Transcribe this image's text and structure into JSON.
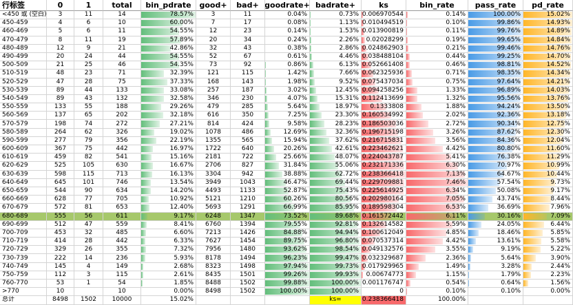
{
  "table": {
    "header": [
      "行标签",
      "0",
      "1",
      "total",
      "bin_pdrate",
      "good+",
      "bad+",
      "goodrate+",
      "badrate+",
      "ks",
      "bin_rate",
      "pass_rate",
      "pd_rate"
    ],
    "rows": [
      [
        "<450 或 (空白)",
        "3",
        "11",
        "14",
        "78.57%",
        "3",
        "11",
        "0.04%",
        "0.73%",
        "0.006970544",
        "0.14%",
        "100.00%",
        "15.02%"
      ],
      [
        "450-459",
        "4",
        "6",
        "10",
        "60.00%",
        "7",
        "17",
        "0.08%",
        "1.13%",
        "0.010494519",
        "0.10%",
        "99.86%",
        "14.93%"
      ],
      [
        "460-469",
        "5",
        "6",
        "11",
        "54.55%",
        "12",
        "23",
        "0.14%",
        "1.53%",
        "0.013900819",
        "0.11%",
        "99.76%",
        "14.89%"
      ],
      [
        "470-479",
        "8",
        "11",
        "19",
        "57.89%",
        "20",
        "34",
        "0.24%",
        "2.26%",
        "0.02028299",
        "0.19%",
        "99.65%",
        "14.84%"
      ],
      [
        "480-489",
        "12",
        "9",
        "21",
        "42.86%",
        "32",
        "43",
        "0.38%",
        "2.86%",
        "0.024862903",
        "0.21%",
        "99.46%",
        "14.76%"
      ],
      [
        "490-499",
        "20",
        "24",
        "44",
        "54.55%",
        "52",
        "67",
        "0.61%",
        "4.46%",
        "0.038488104",
        "0.44%",
        "99.25%",
        "14.70%"
      ],
      [
        "500-509",
        "21",
        "25",
        "46",
        "54.35%",
        "73",
        "92",
        "0.86%",
        "6.13%",
        "0.052661408",
        "0.46%",
        "98.81%",
        "14.52%"
      ],
      [
        "510-519",
        "48",
        "23",
        "71",
        "32.39%",
        "121",
        "115",
        "1.42%",
        "7.66%",
        "0.062325936",
        "0.71%",
        "98.35%",
        "14.34%"
      ],
      [
        "520-529",
        "47",
        "28",
        "75",
        "37.33%",
        "168",
        "143",
        "1.98%",
        "9.52%",
        "0.075437034",
        "0.75%",
        "97.64%",
        "14.21%"
      ],
      [
        "530-539",
        "89",
        "44",
        "133",
        "33.08%",
        "257",
        "187",
        "3.02%",
        "12.45%",
        "0.094258256",
        "1.33%",
        "96.89%",
        "14.03%"
      ],
      [
        "540-549",
        "89",
        "43",
        "132",
        "32.58%",
        "346",
        "230",
        "4.07%",
        "15.31%",
        "0.112413699",
        "1.32%",
        "95.56%",
        "13.76%"
      ],
      [
        "550-559",
        "133",
        "55",
        "188",
        "29.26%",
        "479",
        "285",
        "5.64%",
        "18.97%",
        "0.1333808",
        "1.88%",
        "94.24%",
        "13.50%"
      ],
      [
        "560-569",
        "137",
        "65",
        "202",
        "32.18%",
        "616",
        "350",
        "7.25%",
        "23.30%",
        "0.160534992",
        "2.02%",
        "92.36%",
        "13.18%"
      ],
      [
        "570-579",
        "198",
        "74",
        "272",
        "27.21%",
        "814",
        "424",
        "9.58%",
        "28.23%",
        "0.186503036",
        "2.72%",
        "90.34%",
        "12.75%"
      ],
      [
        "580-589",
        "264",
        "62",
        "326",
        "19.02%",
        "1078",
        "486",
        "12.69%",
        "32.36%",
        "0.196715198",
        "3.26%",
        "87.62%",
        "12.30%"
      ],
      [
        "590-599",
        "277",
        "79",
        "356",
        "22.19%",
        "1355",
        "565",
        "15.94%",
        "37.62%",
        "0.216715831",
        "3.56%",
        "84.36%",
        "12.04%"
      ],
      [
        "600-609",
        "367",
        "75",
        "442",
        "16.97%",
        "1722",
        "640",
        "20.26%",
        "42.61%",
        "0.223462621",
        "4.42%",
        "80.80%",
        "11.60%"
      ],
      [
        "610-619",
        "459",
        "82",
        "541",
        "15.16%",
        "2181",
        "722",
        "25.66%",
        "48.07%",
        "0.224043787",
        "5.41%",
        "76.38%",
        "11.29%"
      ],
      [
        "620-629",
        "525",
        "105",
        "630",
        "16.67%",
        "2706",
        "827",
        "31.84%",
        "55.06%",
        "0.232171336",
        "6.30%",
        "70.97%",
        "10.99%"
      ],
      [
        "630-639",
        "598",
        "115",
        "713",
        "16.13%",
        "3304",
        "942",
        "38.88%",
        "62.72%",
        "0.238366418",
        "7.13%",
        "64.67%",
        "10.44%"
      ],
      [
        "640-649",
        "645",
        "101",
        "746",
        "13.54%",
        "3949",
        "1043",
        "46.47%",
        "69.44%",
        "0.229709881",
        "7.46%",
        "57.54%",
        "9.73%"
      ],
      [
        "650-659",
        "544",
        "90",
        "634",
        "14.20%",
        "4493",
        "1133",
        "52.87%",
        "75.43%",
        "0.225614925",
        "6.34%",
        "50.08%",
        "9.17%"
      ],
      [
        "660-669",
        "628",
        "77",
        "705",
        "10.92%",
        "5121",
        "1210",
        "60.26%",
        "80.56%",
        "0.202980164",
        "7.05%",
        "43.74%",
        "8.44%"
      ],
      [
        "670-679",
        "572",
        "81",
        "653",
        "12.40%",
        "5693",
        "1291",
        "66.99%",
        "85.95%",
        "0.189598304",
        "6.53%",
        "36.69%",
        "7.96%"
      ],
      [
        "680-689",
        "555",
        "56",
        "611",
        "9.17%",
        "6248",
        "1347",
        "73.52%",
        "89.68%",
        "0.161572442",
        "6.11%",
        "30.16%",
        "7.09%"
      ],
      [
        "690-699",
        "512",
        "47",
        "559",
        "8.41%",
        "6760",
        "1394",
        "79.55%",
        "92.81%",
        "0.132614582",
        "5.59%",
        "24.05%",
        "6.44%"
      ],
      [
        "700-709",
        "453",
        "32",
        "485",
        "6.60%",
        "7213",
        "1426",
        "84.88%",
        "94.94%",
        "0.100612049",
        "4.85%",
        "18.46%",
        "5.85%"
      ],
      [
        "710-719",
        "414",
        "28",
        "442",
        "6.33%",
        "7627",
        "1454",
        "89.75%",
        "96.80%",
        "0.070537314",
        "4.42%",
        "13.61%",
        "5.58%"
      ],
      [
        "720-729",
        "329",
        "26",
        "355",
        "7.32%",
        "7956",
        "1480",
        "93.62%",
        "98.54%",
        "0.049132576",
        "3.55%",
        "9.19%",
        "5.22%"
      ],
      [
        "730-739",
        "222",
        "14",
        "236",
        "5.93%",
        "8178",
        "1494",
        "96.23%",
        "99.47%",
        "0.032329687",
        "2.36%",
        "5.64%",
        "3.90%"
      ],
      [
        "740-749",
        "145",
        "4",
        "149",
        "2.68%",
        "8323",
        "1498",
        "97.94%",
        "99.73%",
        "0.017929965",
        "1.49%",
        "3.28%",
        "2.44%"
      ],
      [
        "750-759",
        "112",
        "3",
        "115",
        "2.61%",
        "8435",
        "1501",
        "99.26%",
        "99.93%",
        "0.00674773",
        "1.15%",
        "1.79%",
        "2.23%"
      ],
      [
        "760-770",
        "53",
        "1",
        "54",
        "1.85%",
        "8488",
        "1502",
        "99.88%",
        "100.00%",
        "0.001176747",
        "0.54%",
        "0.64%",
        "1.56%"
      ],
      [
        ">770",
        "10",
        null,
        "10",
        "0.00%",
        "8498",
        "1502",
        "100.00%",
        "100.00%",
        "0",
        "0.10%",
        "0.10%",
        "0.00%"
      ]
    ],
    "total": [
      "总计",
      "8498",
      "1502",
      "10000",
      "15.02%",
      null,
      null,
      null,
      "ks=",
      "0.238366418",
      "100.00%",
      null,
      null
    ]
  }
}
